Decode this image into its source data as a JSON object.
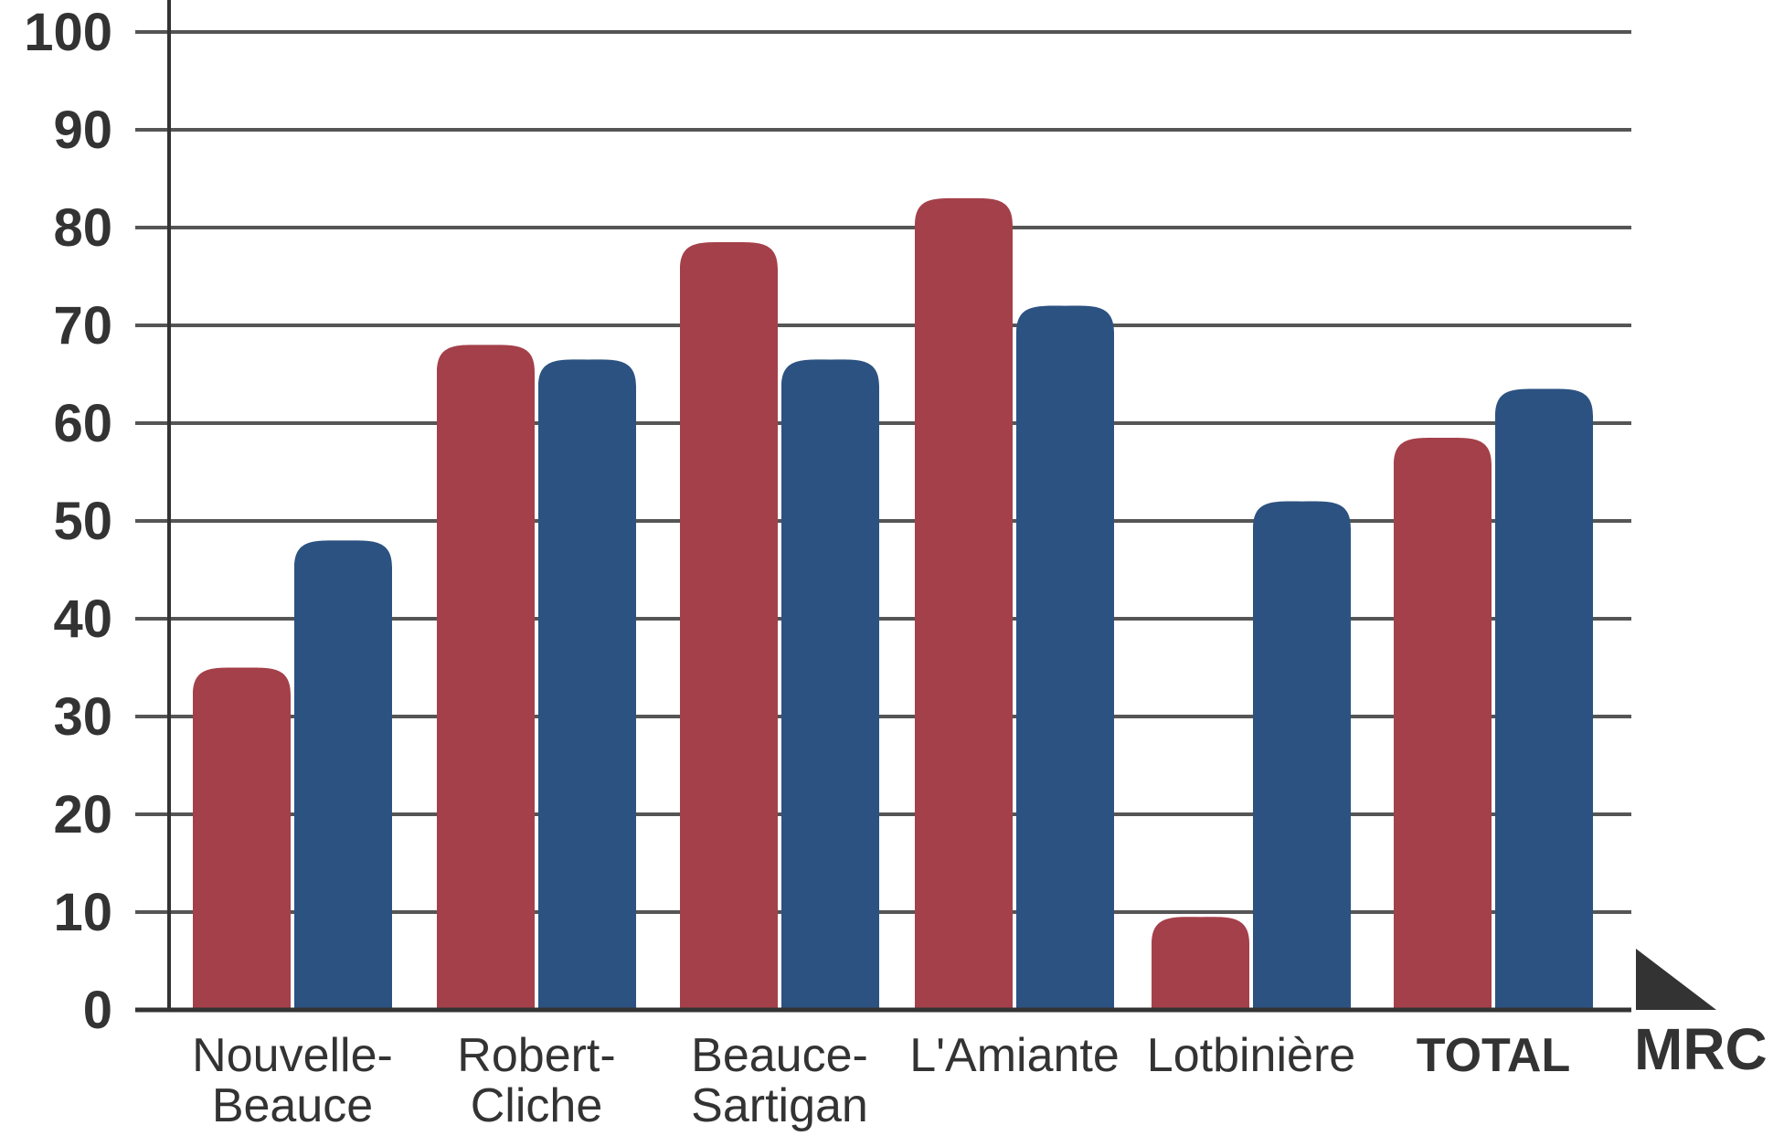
{
  "chart_data": {
    "type": "bar",
    "categories": [
      [
        "Nouvelle-",
        "Beauce"
      ],
      [
        "Robert-",
        "Cliche"
      ],
      [
        "Beauce-",
        "Sartigan"
      ],
      [
        "L'Amiante"
      ],
      [
        "Lotbinière"
      ],
      [
        "TOTAL"
      ]
    ],
    "bold_categories": [
      "TOTAL"
    ],
    "series": [
      {
        "values": [
          35,
          68,
          78.5,
          83,
          9.5,
          58.5
        ],
        "color": "#a4404a"
      },
      {
        "values": [
          48,
          66.5,
          66.5,
          72,
          52,
          63.5
        ],
        "color": "#2c5281"
      }
    ],
    "yticks": [
      0,
      10,
      20,
      30,
      40,
      50,
      60,
      70,
      80,
      90,
      100
    ],
    "ylim": [
      0,
      100
    ],
    "xlabel": "MRC",
    "ylabel": "",
    "title": "",
    "grid": true,
    "legend": "none"
  }
}
